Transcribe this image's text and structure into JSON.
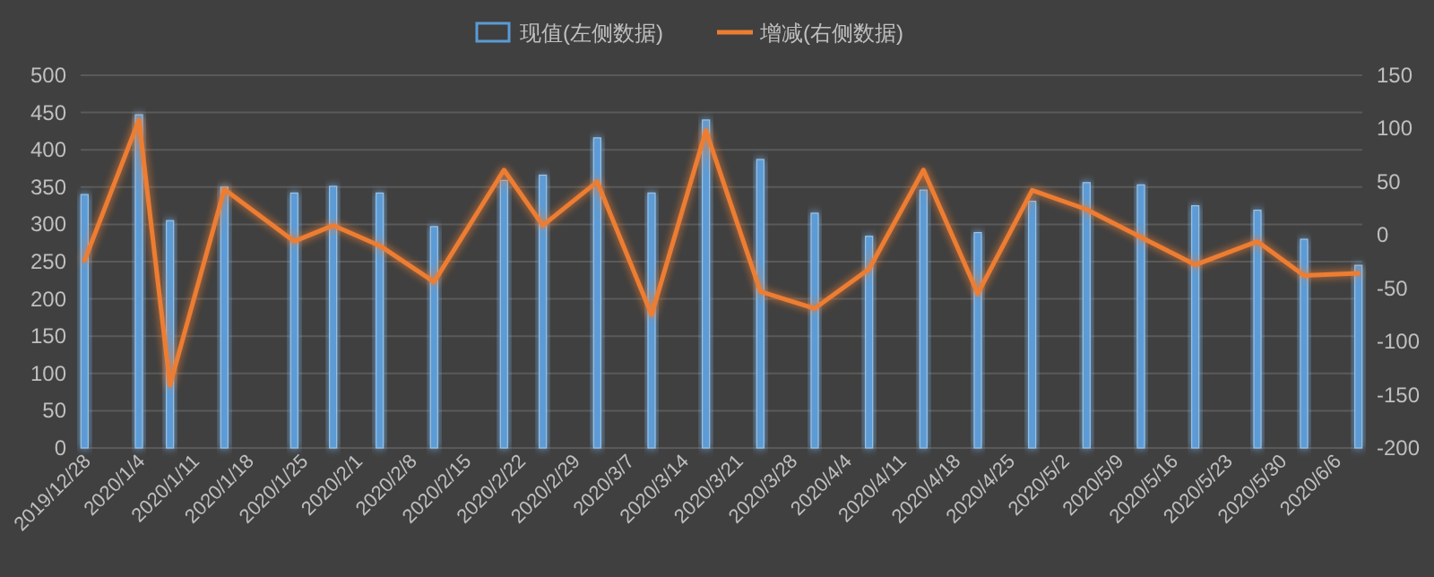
{
  "chart_data": {
    "type": "bar",
    "x": [
      "2019-12-28",
      "2020-01-04",
      "2020-01-08",
      "2020-01-15",
      "2020-01-24",
      "2020-01-29",
      "2020-02-04",
      "2020-02-11",
      "2020-02-20",
      "2020-02-25",
      "2020-03-03",
      "2020-03-10",
      "2020-03-17",
      "2020-03-24",
      "2020-03-31",
      "2020-04-07",
      "2020-04-14",
      "2020-04-21",
      "2020-04-28",
      "2020-05-05",
      "2020-05-12",
      "2020-05-19",
      "2020-05-27",
      "2020-06-02",
      "2020-06-09"
    ],
    "series": [
      {
        "name": "现值(左侧数据)",
        "color": "#5b9bd5",
        "values": [
          340,
          447,
          305,
          350,
          342,
          351,
          342,
          297,
          359,
          366,
          416,
          342,
          440,
          387,
          315,
          284,
          346,
          289,
          331,
          356,
          353,
          325,
          319,
          280,
          245
        ]
      },
      {
        "name": "增减(右侧数据)",
        "type": "line",
        "axis": "y2",
        "color": "#ed7d31",
        "values": [
          -24,
          108,
          -141,
          43,
          -6,
          9,
          -10,
          -44,
          61,
          9,
          50,
          -75,
          98,
          -53,
          -69,
          -32,
          61,
          -55,
          42,
          24,
          -2,
          -28,
          -6,
          -38,
          -36
        ]
      }
    ],
    "xlim": [
      "2019-12-27T12:00",
      "2020-06-09T12:00"
    ],
    "xticks": [
      {
        "value": "2019-12-28",
        "label": "2019/12/28"
      },
      {
        "value": "2020-01-04",
        "label": "2020/1/4"
      },
      {
        "value": "2020-01-11",
        "label": "2020/1/11"
      },
      {
        "value": "2020-01-18",
        "label": "2020/1/18"
      },
      {
        "value": "2020-01-25",
        "label": "2020/1/25"
      },
      {
        "value": "2020-02-01",
        "label": "2020/2/1"
      },
      {
        "value": "2020-02-08",
        "label": "2020/2/8"
      },
      {
        "value": "2020-02-15",
        "label": "2020/2/15"
      },
      {
        "value": "2020-02-22",
        "label": "2020/2/22"
      },
      {
        "value": "2020-02-29",
        "label": "2020/2/29"
      },
      {
        "value": "2020-03-07",
        "label": "2020/3/7"
      },
      {
        "value": "2020-03-14",
        "label": "2020/3/14"
      },
      {
        "value": "2020-03-21",
        "label": "2020/3/21"
      },
      {
        "value": "2020-03-28",
        "label": "2020/3/28"
      },
      {
        "value": "2020-04-04",
        "label": "2020/4/4"
      },
      {
        "value": "2020-04-11",
        "label": "2020/4/11"
      },
      {
        "value": "2020-04-18",
        "label": "2020/4/18"
      },
      {
        "value": "2020-04-25",
        "label": "2020/4/25"
      },
      {
        "value": "2020-05-02",
        "label": "2020/5/2"
      },
      {
        "value": "2020-05-09",
        "label": "2020/5/9"
      },
      {
        "value": "2020-05-16",
        "label": "2020/5/16"
      },
      {
        "value": "2020-05-23",
        "label": "2020/5/23"
      },
      {
        "value": "2020-05-30",
        "label": "2020/5/30"
      },
      {
        "value": "2020-06-06",
        "label": "2020/6/6"
      }
    ],
    "ylim": [
      0,
      500
    ],
    "yticks": [
      0,
      50,
      100,
      150,
      200,
      250,
      300,
      350,
      400,
      450,
      500
    ],
    "y2lim": [
      -200,
      150
    ],
    "y2ticks": [
      -200,
      -150,
      -100,
      -50,
      0,
      50,
      100,
      150
    ],
    "grid": "y",
    "legend": "top",
    "marker": "none",
    "line_style": "solid"
  }
}
